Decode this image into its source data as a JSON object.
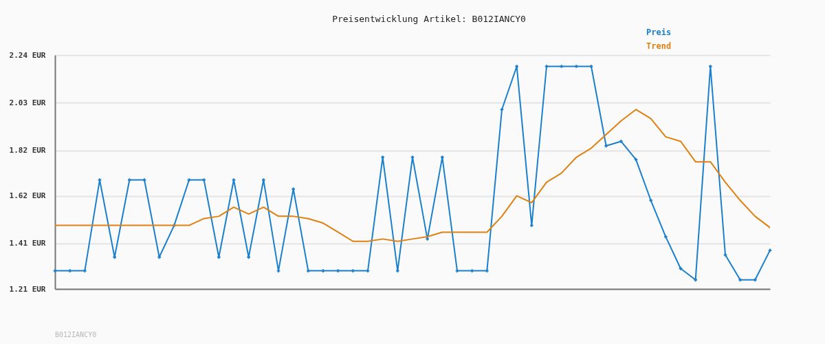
{
  "chart_data": {
    "type": "line",
    "title": "Preisentwicklung Artikel: B012IANCY0",
    "categories": [
      null,
      null,
      null,
      null,
      null,
      null,
      null,
      null,
      null,
      null,
      null,
      null,
      null,
      null,
      null,
      null,
      null,
      null,
      null,
      null,
      null,
      null,
      null,
      null,
      null,
      null,
      null,
      null,
      null,
      null,
      null,
      null,
      null,
      null,
      null,
      null,
      null,
      null,
      null,
      null,
      null,
      null,
      null,
      null,
      null,
      null,
      null,
      null,
      null
    ],
    "series": [
      {
        "name": "Preis",
        "color": "#1a7fcc",
        "marker": "cross",
        "values": [
          1.29,
          1.29,
          1.29,
          1.69,
          1.35,
          1.69,
          1.69,
          1.35,
          1.49,
          1.69,
          1.69,
          1.35,
          1.69,
          1.35,
          1.69,
          1.29,
          1.65,
          1.29,
          1.29,
          1.29,
          1.29,
          1.29,
          1.79,
          1.29,
          1.79,
          1.43,
          1.79,
          1.29,
          1.29,
          1.29,
          2.0,
          2.19,
          1.49,
          2.19,
          2.19,
          2.19,
          2.19,
          1.84,
          1.86,
          1.78,
          1.6,
          1.44,
          1.3,
          1.25,
          2.19,
          1.36,
          1.25,
          1.25,
          1.38
        ]
      },
      {
        "name": "Trend",
        "color": "#e08010",
        "marker": "none",
        "values": [
          1.49,
          1.49,
          1.49,
          1.49,
          1.49,
          1.49,
          1.49,
          1.49,
          1.49,
          1.49,
          1.52,
          1.53,
          1.57,
          1.54,
          1.57,
          1.53,
          1.53,
          1.52,
          1.5,
          1.46,
          1.42,
          1.42,
          1.43,
          1.42,
          1.43,
          1.44,
          1.46,
          1.46,
          1.46,
          1.46,
          1.53,
          1.62,
          1.59,
          1.68,
          1.72,
          1.79,
          1.83,
          1.89,
          1.95,
          2.0,
          1.96,
          1.88,
          1.86,
          1.77,
          1.77,
          1.68,
          1.6,
          1.53,
          1.48
        ]
      }
    ],
    "ylim": [
      1.21,
      2.24
    ],
    "yticks": [
      {
        "value": 1.21,
        "label": "1.21 EUR"
      },
      {
        "value": 1.41,
        "label": "1.41 EUR"
      },
      {
        "value": 1.62,
        "label": "1.62 EUR"
      },
      {
        "value": 1.82,
        "label": "1.82 EUR"
      },
      {
        "value": 2.03,
        "label": "2.03 EUR"
      },
      {
        "value": 2.24,
        "label": "2.24 EUR"
      }
    ],
    "grid": "y",
    "legend": "top right",
    "tick_labels": "y",
    "line_style": "solid",
    "annotations": [
      "B012IANCY0"
    ]
  }
}
